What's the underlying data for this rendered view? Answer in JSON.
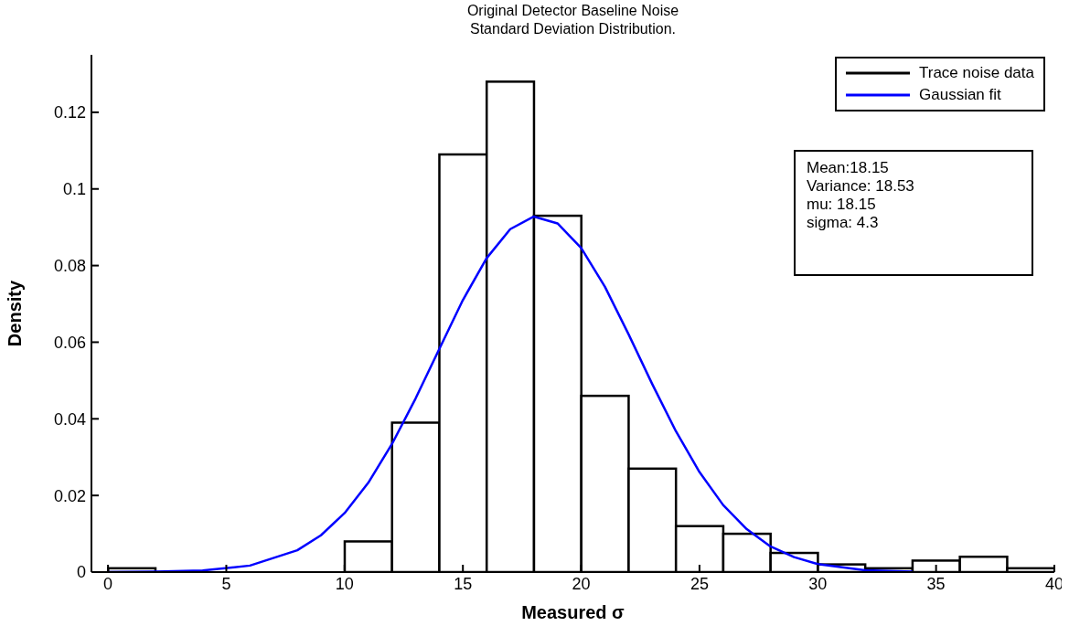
{
  "chart_data": {
    "type": "histogram",
    "title": "Original Detector Baseline Noise\nStandard Deviation Distribution.",
    "xlabel": "Measured σ",
    "ylabel": "Density",
    "bins": [
      0,
      2,
      4,
      6,
      8,
      10,
      12,
      14,
      16,
      18,
      20,
      22,
      24,
      26,
      28,
      30,
      32,
      34,
      36,
      38,
      40
    ],
    "series": [
      {
        "name": "Trace noise data",
        "color": "#000000",
        "values": [
          0.001,
          0,
          0,
          0,
          0,
          0.008,
          0.039,
          0.109,
          0.128,
          0.093,
          0.046,
          0.027,
          0.012,
          0.01,
          0.005,
          0.002,
          0.001,
          0.003,
          0.004,
          0.001
        ]
      },
      {
        "name": "Gaussian fit",
        "type": "line",
        "color": "#0000ff",
        "x": [
          0,
          2,
          4,
          6,
          8,
          9,
          10,
          11,
          12,
          13,
          14,
          15,
          16,
          17,
          18,
          19,
          20,
          21,
          22,
          23,
          24,
          25,
          26,
          27,
          28,
          29,
          30,
          32,
          34
        ],
        "values": [
          0,
          0.0001,
          0.0004,
          0.0017,
          0.0057,
          0.0096,
          0.0154,
          0.0233,
          0.0334,
          0.0453,
          0.0582,
          0.071,
          0.0819,
          0.0895,
          0.0928,
          0.091,
          0.0846,
          0.0745,
          0.0621,
          0.0491,
          0.0368,
          0.0261,
          0.0175,
          0.0112,
          0.0067,
          0.0039,
          0.0021,
          0.0005,
          0.0001
        ]
      }
    ],
    "xlim": [
      -0.7,
      40
    ],
    "ylim": [
      0,
      0.135
    ],
    "xticks": [
      0,
      5,
      10,
      15,
      20,
      25,
      30,
      35,
      40
    ],
    "yticks": [
      0,
      0.02,
      0.04,
      0.06,
      0.08,
      0.1,
      0.12
    ],
    "annotations": [
      "Mean:18.15",
      "Variance: 18.53",
      "mu: 18.15",
      "sigma: 4.3"
    ],
    "legend": "top right",
    "grid": false
  }
}
